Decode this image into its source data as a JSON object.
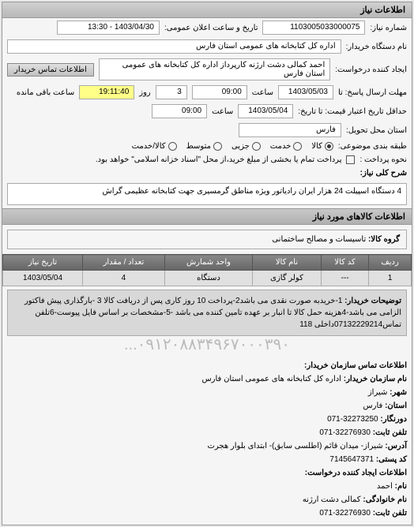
{
  "panel": {
    "title": "اطلاعات نیاز"
  },
  "header": {
    "req_no_label": "شماره نیاز:",
    "req_no": "1103005033000075",
    "ann_date_label": "تاریخ و ساعت اعلان عمومی:",
    "ann_date": "1403/04/30 - 13:30",
    "buyer_label": "نام دستگاه خریدار:",
    "buyer": "اداره کل کتابخانه های عمومی استان فارس",
    "creator_label": "ایجاد کننده درخواست:",
    "creator": "احمد  کمالی دشت ارژنه   کارپرداز اداره کل کتابخانه های عمومی استان فارس",
    "contact_btn": "اطلاعات تماس خریدار"
  },
  "dates": {
    "deadline_from_label": "مهلت ارسال پاسخ: تا",
    "deadline_from_date": "1403/05/03",
    "time_label": "ساعت",
    "deadline_from_time": "09:00",
    "remain_count": "3",
    "remain_label": "روز",
    "remain_time": "19:11:40",
    "remain_suffix": "ساعت باقی مانده",
    "valid_to_label": "حداقل تاریخ اعتبار قیمت: تا تاریخ:",
    "valid_to_date": "1403/05/04",
    "valid_to_time": "09:00"
  },
  "location": {
    "label": "استان محل تحویل:",
    "value": "فارس"
  },
  "packing": {
    "label": "طبقه بندی موضوعی:",
    "opts": [
      "کالا",
      "خدمت",
      "جزیی",
      "متوسط",
      "کالا/خدمت"
    ],
    "selected": 0
  },
  "payment": {
    "label": "نحوه پرداخت :",
    "note": "پرداخت تمام یا بخشی از مبلغ خرید،از محل \"اسناد خزانه اسلامی\" خواهد بود.",
    "checkbox_checked": false
  },
  "keyword": {
    "label": "شرح کلی نیاز:",
    "value": "4 دستگاه اسپیلت 24 هزار ایران رادیاتور ویژه مناطق گرمسیری جهت کتابخانه عظیمی گراش"
  },
  "goods": {
    "header": "اطلاعات کالاهای مورد نیاز",
    "group_label": "گروه کالا:",
    "group_value": "تاسیسات و مصالح ساختمانی",
    "table": {
      "cols": [
        "ردیف",
        "کد کالا",
        "نام کالا",
        "واحد شمارش",
        "تعداد / مقدار",
        "تاریخ نیاز"
      ],
      "row": [
        "1",
        "---",
        "کولر گازی",
        "دستگاه",
        "4",
        "1403/05/04"
      ]
    }
  },
  "extra": {
    "label": "توضیحات خریدار:",
    "text": "1-خریدبه صورت نقدی می باشد2-پرداخت 10 روز کاری پس از دریافت کالا 3 -بارگذاری پیش فاکتور الزامی می باشد-4هزینه حمل کالا تا انبار بر عهده تامین کننده می باشد -5-مشخصات بر اساس فایل پیوست-6تلفن تماس07132229214داخلی 118"
  },
  "contact": {
    "header": "اطلاعات تماس سازمان خریدار:",
    "org_label": "نام سازمان خریدار:",
    "org": "اداره کل کتابخانه های عمومی استان فارس",
    "city_label": "شهر:",
    "city": "شیراز",
    "prov_label": "استان:",
    "prov": "فارس",
    "fax_label": "دورنگار:",
    "fax": "32273250-071",
    "tel_label": "تلفن ثابت:",
    "tel": "32276930-071",
    "addr_label": "آدرس:",
    "addr": "شیراز- میدان قائم (اطلسی سابق)- ابتدای بلوار هجرت",
    "post_label": "کد پستی:",
    "post": "7145647371",
    "req_creator_header": "اطلاعات ایجاد کننده درخواست:",
    "name_label": "نام:",
    "name": "احمد",
    "lname_label": "نام خانوادگی:",
    "lname": "کمالی دشت ارژنه",
    "tel2_label": "تلفن ثابت:",
    "tel2": "32276930-071"
  },
  "watermark": "۰۹۱۲۰۸۸۳۴۹۶۷۰۰۰۳۹۰..."
}
